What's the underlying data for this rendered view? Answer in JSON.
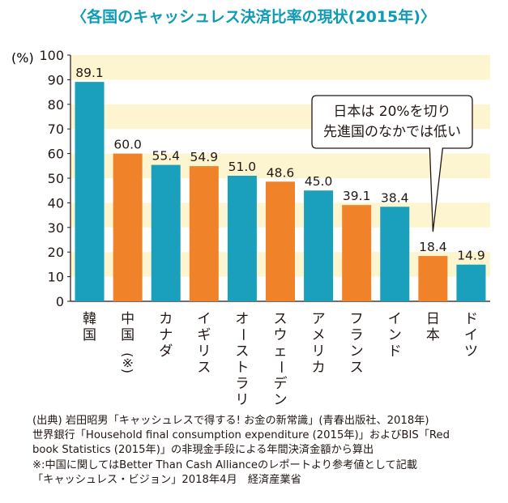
{
  "chart_data": {
    "type": "bar",
    "title": "〈各国のキャッシュレス決済比率の現状(2015年)〉",
    "ylabel": "(%)",
    "ylim": [
      0,
      100
    ],
    "yticks": [
      0,
      10,
      20,
      30,
      40,
      50,
      60,
      70,
      80,
      90,
      100
    ],
    "grid": "alternating horizontal bands",
    "categories": [
      "韓国",
      "中国(※)",
      "カナダ",
      "イギリス",
      "オーストラリア",
      "スウェーデン",
      "アメリカ",
      "フランス",
      "インド",
      "日本",
      "ドイツ"
    ],
    "category_labels": [
      "韓国",
      "中国",
      "カナダ",
      "イギリス",
      "オーストラリア",
      "スウェーデン",
      "アメリカ",
      "フランス",
      "インド",
      "日本",
      "ドイツ"
    ],
    "category_notes": [
      "",
      "(※)",
      "",
      "",
      "",
      "",
      "",
      "",
      "",
      "",
      ""
    ],
    "values": [
      89.1,
      60.0,
      55.4,
      54.9,
      51.0,
      48.6,
      45.0,
      39.1,
      38.4,
      18.4,
      14.9
    ],
    "value_labels": [
      "89.1",
      "60.0",
      "55.4",
      "54.9",
      "51.0",
      "48.6",
      "45.0",
      "39.1",
      "38.4",
      "18.4",
      "14.9"
    ],
    "bar_color_keys": [
      "teal",
      "orange",
      "teal",
      "orange",
      "teal",
      "orange",
      "teal",
      "orange",
      "teal",
      "orange",
      "teal"
    ],
    "annotation": {
      "lines": [
        "日本は 20%を切り",
        "先進国のなかでは低い"
      ],
      "points_to": "日本"
    }
  },
  "colors": {
    "title": "#0e9bb5",
    "teal": "#1a9fbc",
    "orange": "#f0822a",
    "band": "#fdf5cf",
    "text": "#231815"
  },
  "source": {
    "lines": [
      "(出典) 岩田昭男「キャッシュレスで得する! お金の新常識」(青春出版社、2018年)",
      "世界銀行「Household final consumption expenditure (2015年)」およびBIS「Red",
      "book Statistics (2015年)」の非現金手段による年間決済金額から算出",
      "※:中国に関してはBetter Than Cash Allianceのレポートより参考値として記載",
      "「キャッシュレス・ビジョン」2018年4月　経済産業省"
    ]
  }
}
